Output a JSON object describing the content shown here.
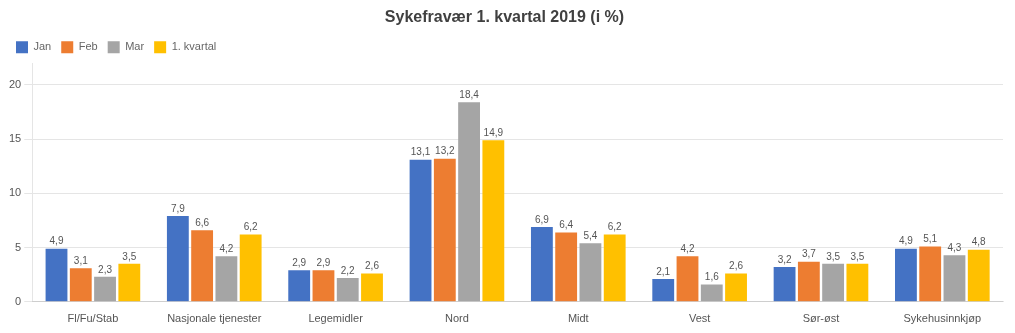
{
  "chart_data": {
    "type": "bar",
    "title": "Sykefravær 1. kvartal 2019 (i %)",
    "categories": [
      "Fl/Fu/Stab",
      "Nasjonale tjenester",
      "Legemidler",
      "Nord",
      "Midt",
      "Vest",
      "Sør-øst",
      "Sykehusinnkjøp"
    ],
    "series": [
      {
        "name": "Jan",
        "color": "#4472C4",
        "values": [
          4.9,
          7.9,
          2.9,
          13.1,
          6.9,
          2.1,
          3.2,
          4.9
        ],
        "value_labels": [
          "4,9",
          "7,9",
          "2,9",
          "13,1",
          "6,9",
          "2,1",
          "3,2",
          "4,9"
        ]
      },
      {
        "name": "Feb",
        "color": "#ED7D31",
        "values": [
          3.1,
          6.6,
          2.9,
          13.2,
          6.4,
          4.2,
          3.7,
          5.1
        ],
        "value_labels": [
          "3,1",
          "6,6",
          "2,9",
          "13,2",
          "6,4",
          "4,2",
          "3,7",
          "5,1"
        ]
      },
      {
        "name": "Mar",
        "color": "#A5A5A5",
        "values": [
          2.3,
          4.2,
          2.2,
          18.4,
          5.4,
          1.6,
          3.5,
          4.3
        ],
        "value_labels": [
          "2,3",
          "4,2",
          "2,2",
          "18,4",
          "5,4",
          "1,6",
          "3,5",
          "4,3"
        ]
      },
      {
        "name": "1. kvartal",
        "color": "#FFC000",
        "values": [
          3.5,
          6.2,
          2.6,
          14.9,
          6.2,
          2.6,
          3.5,
          4.8
        ],
        "value_labels": [
          "3,5",
          "6,2",
          "2,6",
          "14,9",
          "6,2",
          "2,6",
          "3,5",
          "4,8"
        ]
      }
    ],
    "ylim": [
      0,
      22
    ],
    "yticks": [
      0,
      5,
      10,
      15,
      20
    ],
    "grid": true,
    "legend": "upper left",
    "data_labels": true
  }
}
